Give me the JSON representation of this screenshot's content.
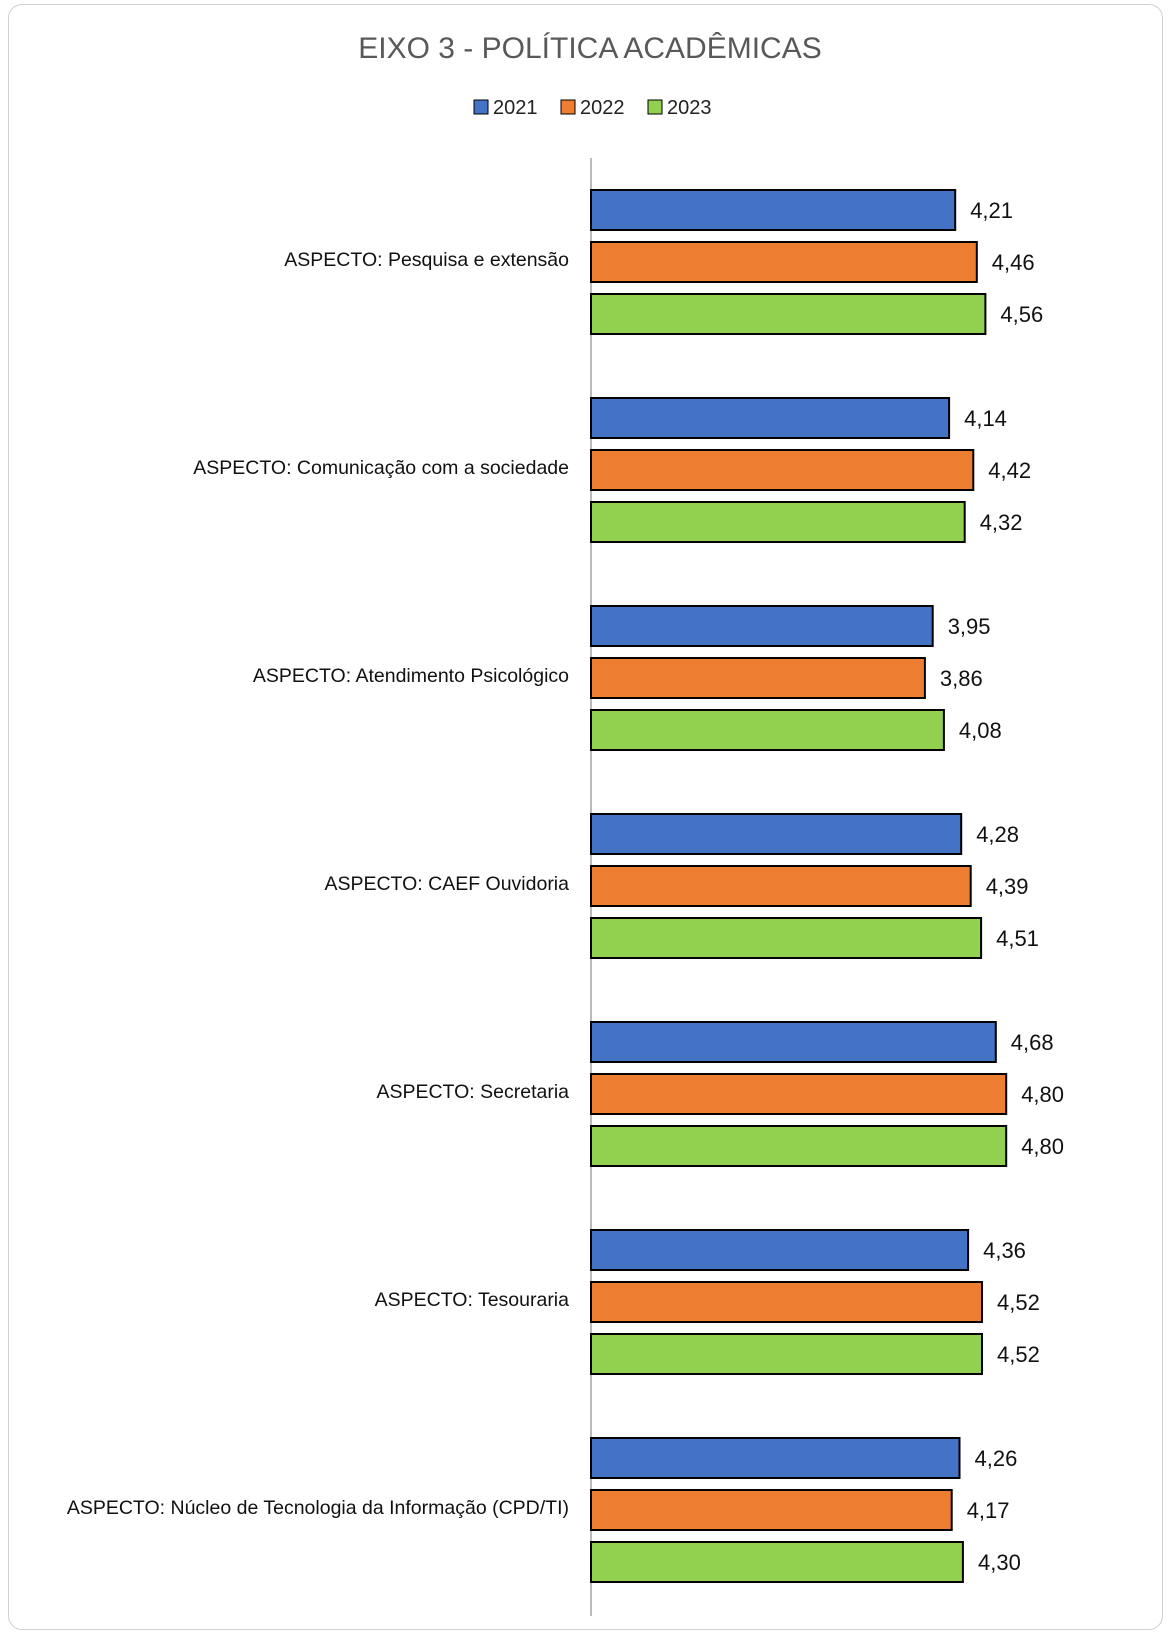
{
  "chart_data": {
    "type": "bar",
    "orientation": "horizontal",
    "title": "EIXO 3 - POLÍTICA ACADÊMICAS",
    "legend_position": "top",
    "categories": [
      "ASPECTO: Pesquisa e extensão",
      "ASPECTO: Comunicação com a sociedade",
      "ASPECTO: Atendimento Psicológico",
      "ASPECTO: CAEF Ouvidoria",
      "ASPECTO: Secretaria",
      "ASPECTO: Tesouraria",
      "ASPECTO: Núcleo de Tecnologia da Informação (CPD/TI)"
    ],
    "series": [
      {
        "name": "2021",
        "color": "#4472C4",
        "values": [
          4.21,
          4.14,
          3.95,
          4.28,
          4.68,
          4.36,
          4.26
        ],
        "labels": [
          "4,21",
          "4,14",
          "3,95",
          "4,28",
          "4,68",
          "4,36",
          "4,26"
        ]
      },
      {
        "name": "2022",
        "color": "#ED7D31",
        "values": [
          4.46,
          4.42,
          3.86,
          4.39,
          4.8,
          4.52,
          4.17
        ],
        "labels": [
          "4,46",
          "4,42",
          "3,86",
          "4,39",
          "4,80",
          "4,52",
          "4,17"
        ]
      },
      {
        "name": "2023",
        "color": "#92D050",
        "values": [
          4.56,
          4.32,
          4.08,
          4.51,
          4.8,
          4.52,
          4.3
        ],
        "labels": [
          "4,56",
          "4,32",
          "4,08",
          "4,51",
          "4,80",
          "4,52",
          "4,30"
        ]
      }
    ],
    "xlim": [
      0,
      5.4
    ],
    "grid": false,
    "axis_visible": false
  }
}
